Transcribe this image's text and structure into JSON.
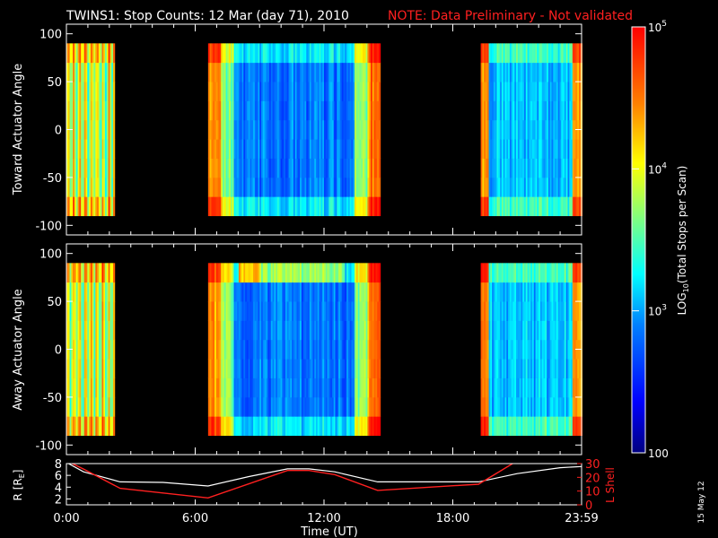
{
  "title": {
    "main": "TWINS1: Stop Counts: 12 Mar (day  71), 2010",
    "note": "NOTE: Data Preliminary - Not validated"
  },
  "date_stamp": "15 May 12",
  "colors": {
    "background": "#000000",
    "note_text": "#ff2020",
    "l_shell_line": "#ff2020",
    "r_line": "#ffffff"
  },
  "chart_data": [
    {
      "type": "heatmap",
      "ylabel": "Toward Actuator Angle",
      "ylim": [
        -110,
        110
      ],
      "yticks": [
        -100,
        -50,
        0,
        50,
        100
      ],
      "y_data_range": [
        -90,
        90
      ],
      "xlim": [
        0,
        24
      ],
      "data_intervals_hours": [
        [
          0.0,
          2.2
        ],
        [
          6.6,
          14.6
        ],
        [
          19.3,
          24.0
        ]
      ],
      "colorscale": "log"
    },
    {
      "type": "heatmap",
      "ylabel": "Away Actuator Angle",
      "ylim": [
        -110,
        110
      ],
      "yticks": [
        -100,
        -50,
        0,
        50,
        100
      ],
      "y_data_range": [
        -90,
        90
      ],
      "xlim": [
        0,
        24
      ],
      "data_intervals_hours": [
        [
          0.0,
          2.2
        ],
        [
          6.6,
          14.6
        ],
        [
          19.3,
          24.0
        ]
      ],
      "colorscale": "log"
    },
    {
      "type": "line",
      "ylabel_left": "R [R",
      "ylabel_left_sub": "E",
      "ylabel_left_end": "]",
      "ylabel_right": "L Shell",
      "ylim_left": [
        1,
        8
      ],
      "yticks_left": [
        2,
        4,
        6,
        8
      ],
      "ylim_right": [
        0,
        30
      ],
      "yticks_right": [
        0,
        10,
        20,
        30
      ],
      "xlabel": "Time (UT)",
      "xlim": [
        0,
        24
      ],
      "xtick_labels": [
        "0:00",
        "6:00",
        "12:00",
        "18:00",
        "23:59"
      ],
      "xtick_values": [
        0,
        6,
        12,
        18,
        24
      ],
      "series": [
        {
          "axis": "left",
          "x": [
            0,
            0.8,
            2.5,
            4.5,
            6.6,
            8.5,
            10.3,
            11.3,
            12.5,
            14.5,
            17,
            19.2,
            21,
            23,
            24
          ],
          "values": [
            8.2,
            6.6,
            4.9,
            4.8,
            4.2,
            5.8,
            7.1,
            7.1,
            6.6,
            4.9,
            4.9,
            4.9,
            6.3,
            7.3,
            7.5
          ]
        },
        {
          "axis": "right",
          "x": [
            0,
            0.8,
            2.5,
            6.6,
            10.3,
            11.3,
            12.5,
            14.5,
            19.2,
            21
          ],
          "values": [
            32,
            26,
            12,
            5,
            25,
            25,
            22,
            10.5,
            15,
            32
          ]
        }
      ]
    }
  ],
  "colorbar": {
    "label": "LOG",
    "label_sub": "10",
    "label_rest": "(Total Stops per Scan)",
    "range": [
      100,
      100000
    ],
    "ticks": [
      {
        "value": 100000,
        "base": "10",
        "exp": "5"
      },
      {
        "value": 10000,
        "base": "10",
        "exp": "4"
      },
      {
        "value": 1000,
        "base": "10",
        "exp": "3"
      },
      {
        "value": 100,
        "base": "100",
        "exp": ""
      }
    ]
  }
}
